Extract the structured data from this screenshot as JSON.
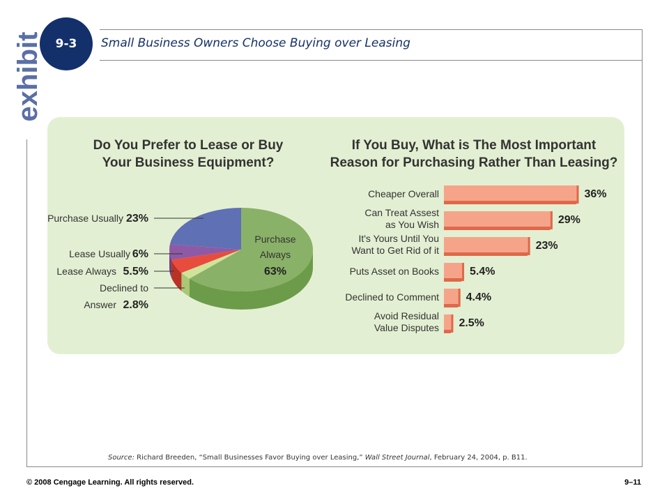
{
  "brand": {
    "exhibit_word": "exhibit",
    "badge": "9-3"
  },
  "header": {
    "title": "Small Business Owners Choose Buying over Leasing"
  },
  "colors": {
    "badge": "#14306b",
    "panel": "#e3efd2",
    "bar": "#f5a48a",
    "bar_shadow": "#e0684a",
    "pie": [
      "#8ab168",
      "#5f70b5",
      "#8e5aa6",
      "#e84c3d",
      "#cfe39a"
    ],
    "pie_side": [
      "#6c9b4a",
      "#46559a",
      "#6d3f86",
      "#b83226",
      "#a9c775"
    ]
  },
  "chart_data": [
    {
      "type": "pie",
      "title_lines": [
        "Do You Prefer to Lease or Buy",
        "Your Business Equipment?"
      ],
      "slices": [
        {
          "label": "Purchase Always",
          "label_lines": [
            "Purchase",
            "Always"
          ],
          "value": 63,
          "value_label": "63%"
        },
        {
          "label": "Purchase Usually",
          "label_lines": [
            "Purchase Usually"
          ],
          "value": 23,
          "value_label": "23%"
        },
        {
          "label": "Lease Usually",
          "label_lines": [
            "Lease Usually"
          ],
          "value": 6,
          "value_label": "6%"
        },
        {
          "label": "Lease Always",
          "label_lines": [
            "Lease Always"
          ],
          "value": 5.5,
          "value_label": "5.5%"
        },
        {
          "label": "Declined to Answer",
          "label_lines": [
            "Declined to",
            "Answer"
          ],
          "value": 2.8,
          "value_label": "2.8%"
        }
      ]
    },
    {
      "type": "bar",
      "orientation": "horizontal",
      "title_lines": [
        "If You Buy, What is The Most Important",
        "Reason for Purchasing Rather Than Leasing?"
      ],
      "categories": [
        {
          "lines": [
            "Cheaper Overall"
          ]
        },
        {
          "lines": [
            "Can Treat Assest",
            "as You Wish"
          ]
        },
        {
          "lines": [
            "It's Yours Until You",
            "Want to Get Rid of it"
          ]
        },
        {
          "lines": [
            "Puts Asset on Books"
          ]
        },
        {
          "lines": [
            "Declined to Comment"
          ]
        },
        {
          "lines": [
            "Avoid Residual",
            "Value Disputes"
          ]
        }
      ],
      "values": [
        36,
        29,
        23,
        5.4,
        4.4,
        2.5
      ],
      "value_labels": [
        "36%",
        "29%",
        "23%",
        "5.4%",
        "4.4%",
        "2.5%"
      ],
      "xlim": [
        0,
        40
      ]
    }
  ],
  "footer": {
    "source_prefix": "Source:",
    "source_text": " Richard Breeden, “Small Businesses Favor Buying over Leasing,” ",
    "source_journal": "Wall Street Journal",
    "source_suffix": ", February 24, 2004, p. B11.",
    "copyright": "© 2008 Cengage Learning. All rights reserved.",
    "page": "9–11"
  }
}
